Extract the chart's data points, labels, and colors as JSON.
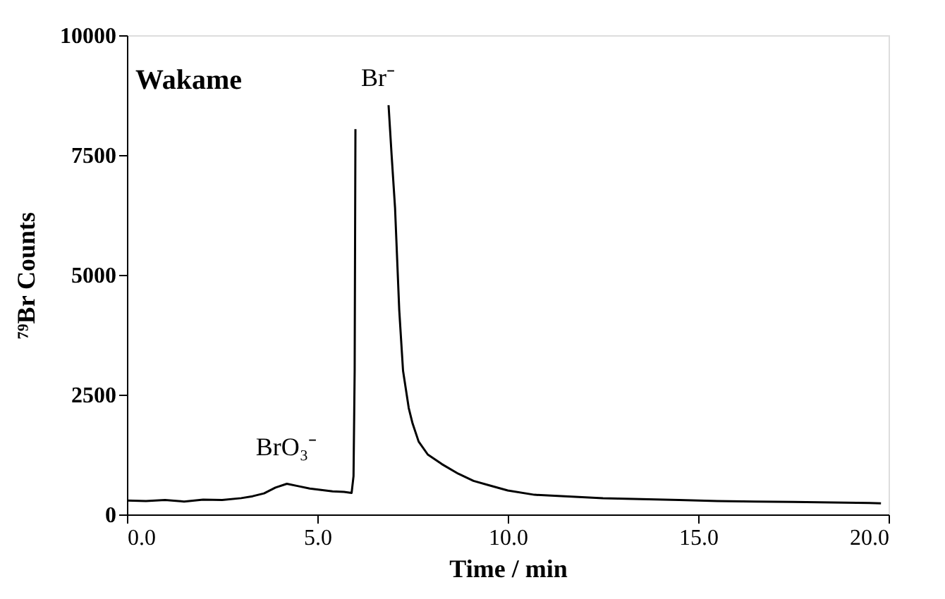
{
  "chart_data": {
    "type": "line",
    "xlabel": "Time / min",
    "ylabel": "⁷⁹Br Counts",
    "x": [
      0,
      0.5,
      1.0,
      1.5,
      2.0,
      2.5,
      3.0,
      3.3,
      3.6,
      3.9,
      4.2,
      4.5,
      4.8,
      5.1,
      5.4,
      5.7,
      5.9,
      5.95,
      5.98,
      6.0,
      6.4,
      6.87,
      6.95,
      7.04,
      7.15,
      7.25,
      7.4,
      7.5,
      7.66,
      7.9,
      8.27,
      8.7,
      9.1,
      9.5,
      10.0,
      10.7,
      11.5,
      12.5,
      13.5,
      14.5,
      15.5,
      16.5,
      17.5,
      18.5,
      19.5,
      19.8
    ],
    "series": [
      {
        "color": "#000000",
        "values": [
          290,
          280,
          300,
          270,
          310,
          300,
          340,
          380,
          440,
          560,
          640,
          590,
          540,
          510,
          480,
          470,
          450,
          800,
          3000,
          8040,
          null,
          8540,
          7500,
          6400,
          4270,
          3000,
          2220,
          1900,
          1520,
          1250,
          1050,
          850,
          700,
          610,
          500,
          410,
          380,
          340,
          320,
          300,
          280,
          270,
          260,
          250,
          240,
          230
        ]
      }
    ],
    "xlim": [
      0,
      20
    ],
    "xticks": [
      {
        "value": 0,
        "label": "0.0"
      },
      {
        "value": 5,
        "label": "5.0"
      },
      {
        "value": 10,
        "label": "10.0"
      },
      {
        "value": 15,
        "label": "15.0"
      },
      {
        "value": 20,
        "label": "20.0"
      }
    ],
    "ylim": [
      0,
      10000
    ],
    "yticks": [
      0,
      2500,
      5000,
      7500,
      10000
    ],
    "grid": false,
    "marker": "none",
    "line_style": "solid",
    "annotations": [
      "Wakame",
      "Br⁻",
      "BrO₃⁻"
    ]
  }
}
